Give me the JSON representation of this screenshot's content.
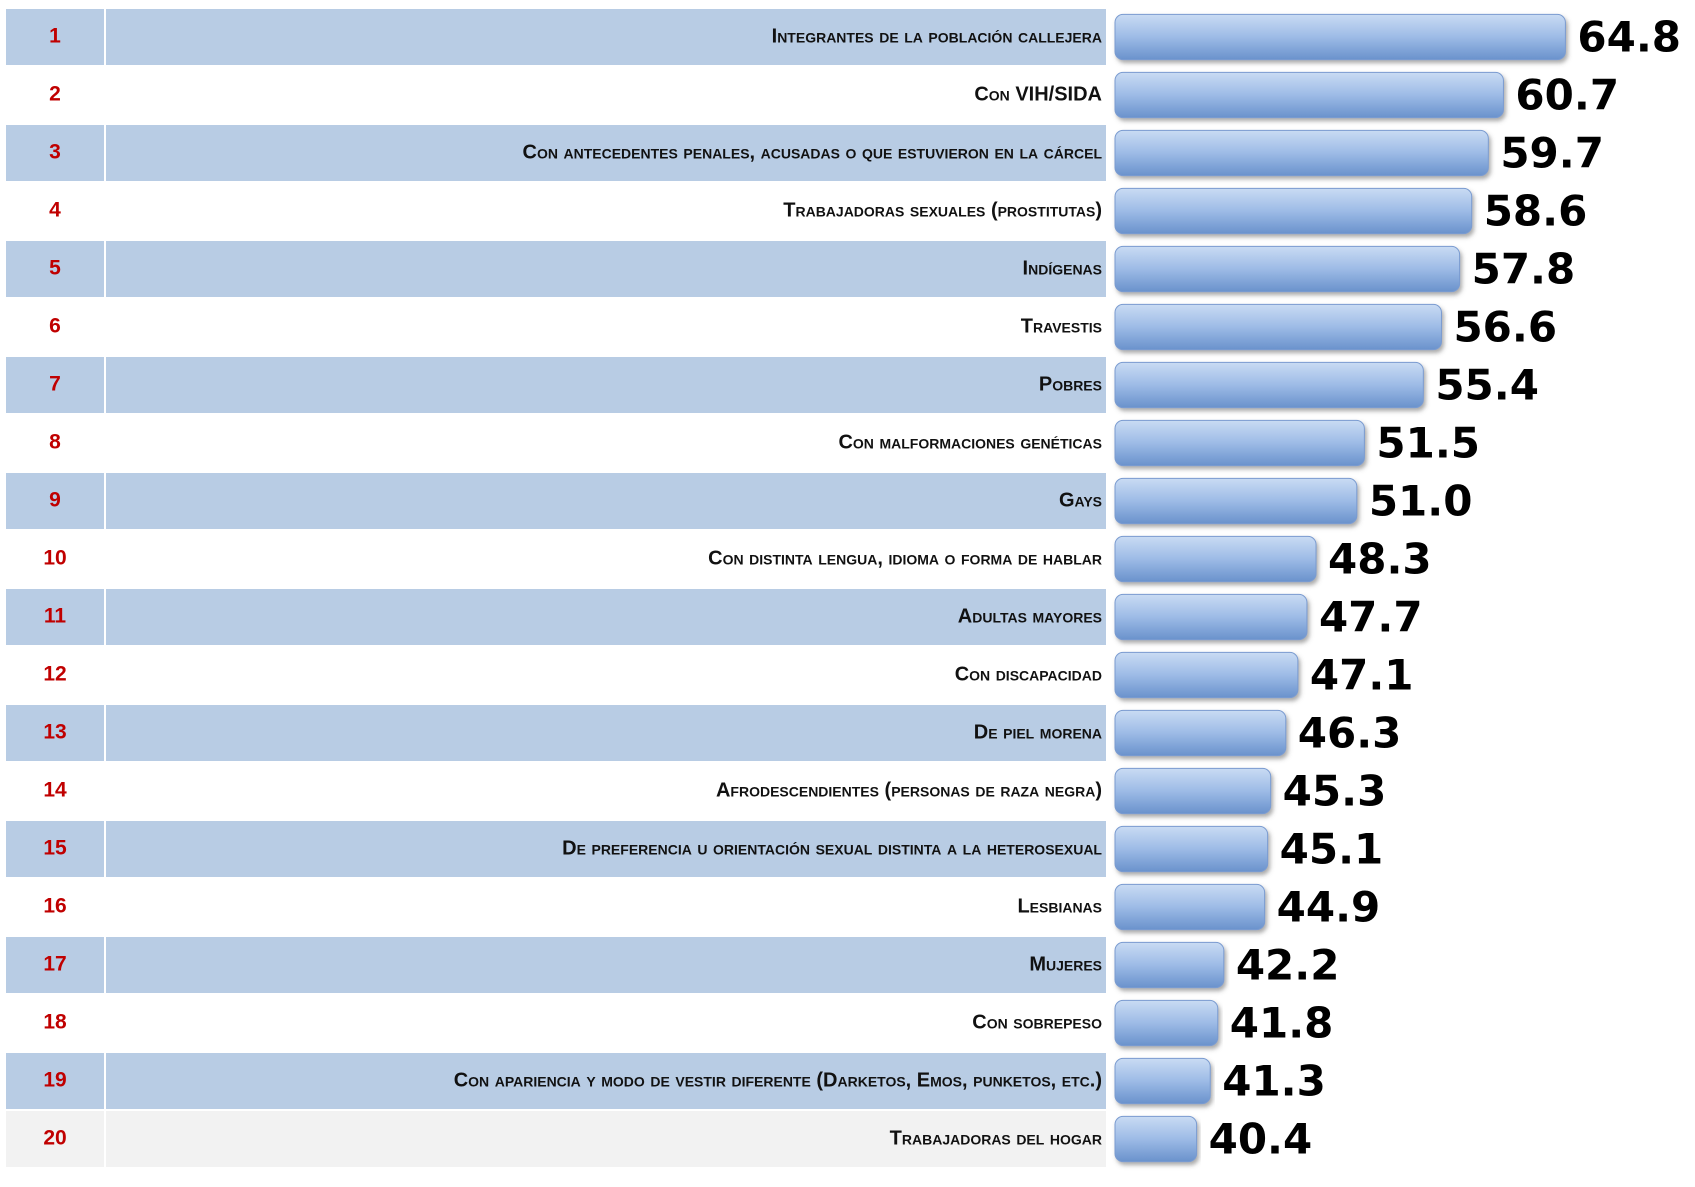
{
  "chart_data": {
    "type": "bar",
    "orientation": "horizontal",
    "ranks": [
      1,
      2,
      3,
      4,
      5,
      6,
      7,
      8,
      9,
      10,
      11,
      12,
      13,
      14,
      15,
      16,
      17,
      18,
      19,
      20
    ],
    "categories": [
      "Integrantes de la población callejera",
      "Con VIH/SIDA",
      "Con antecedentes penales, acusadas o que estuvieron en la cárcel",
      "Trabajadoras sexuales (prostitutas)",
      "Indígenas",
      "Travestis",
      "Pobres",
      "Con malformaciones genéticas",
      "Gays",
      "Con distinta lengua,  idioma o forma de hablar",
      "Adultas mayores",
      "Con discapacidad",
      "De piel morena",
      "Afrodescendientes (personas de raza negra)",
      "De preferencia u orientación sexual distinta a la heterosexual",
      "Lesbianas",
      "Mujeres",
      "Con sobrepeso",
      "Con apariencia y modo de vestir diferente (Darketos, Emos, punketos, etc.)",
      "Trabajadoras del hogar"
    ],
    "values": [
      64.8,
      60.7,
      59.7,
      58.6,
      57.8,
      56.6,
      55.4,
      51.5,
      51.0,
      48.3,
      47.7,
      47.1,
      46.3,
      45.3,
      45.1,
      44.9,
      42.2,
      41.8,
      41.3,
      40.4
    ],
    "value_labels": [
      "64.8",
      "60.7",
      "59.7",
      "58.6",
      "57.8",
      "56.6",
      "55.4",
      "51.5",
      "51.0",
      "48.3",
      "47.7",
      "47.1",
      "46.3",
      "45.3",
      "45.1",
      "44.9",
      "42.2",
      "41.8",
      "41.3",
      "40.4"
    ],
    "xlim": [
      35,
      70
    ],
    "color": "#8fb0e0"
  }
}
